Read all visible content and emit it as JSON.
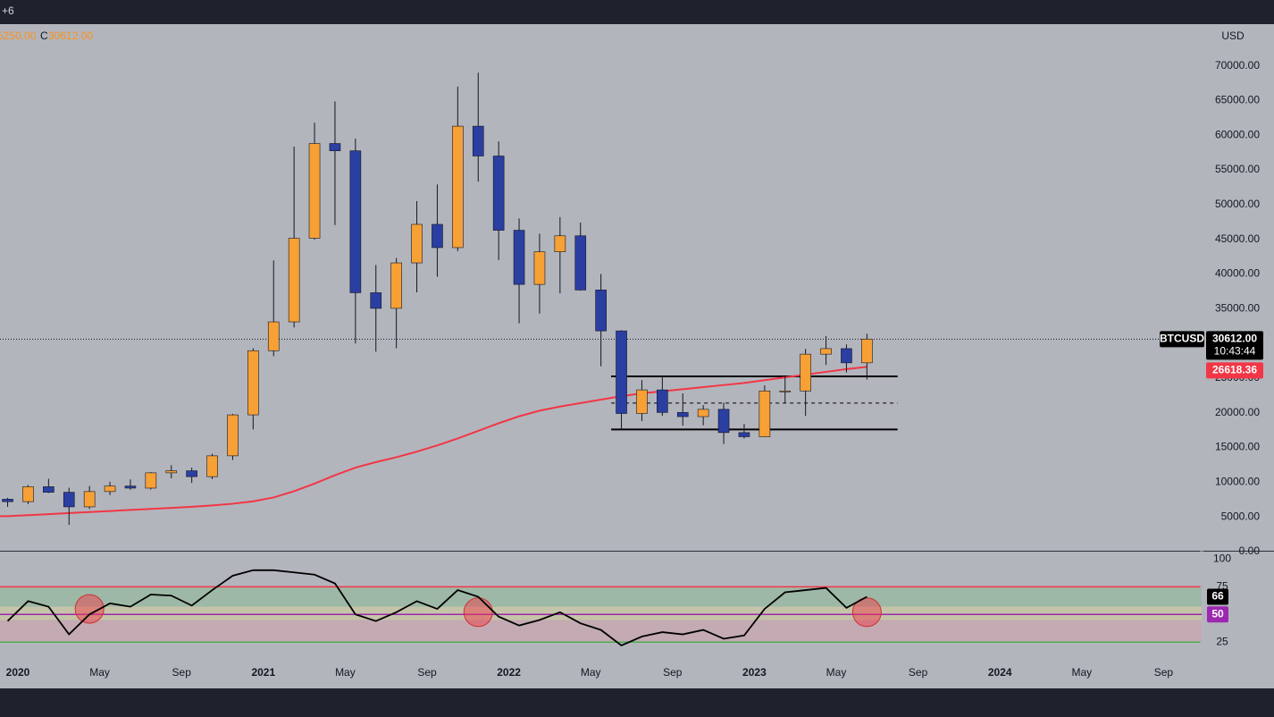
{
  "chart_data": {
    "type": "candlestick",
    "top_text": "+6",
    "legend": {
      "low_tail": "5250.00",
      "close_prefix": "C",
      "close": "30612.00"
    },
    "currency": "USD",
    "symbol": "BTCUSD",
    "countdown": "10:43:44",
    "x": [
      "2019-12",
      "2020-01",
      "2020-02",
      "2020-03",
      "2020-04",
      "2020-05",
      "2020-06",
      "2020-07",
      "2020-08",
      "2020-09",
      "2020-10",
      "2020-11",
      "2020-12",
      "2021-01",
      "2021-02",
      "2021-03",
      "2021-04",
      "2021-05",
      "2021-06",
      "2021-07",
      "2021-08",
      "2021-09",
      "2021-10",
      "2021-11",
      "2021-12",
      "2022-01",
      "2022-02",
      "2022-03",
      "2022-04",
      "2022-05",
      "2022-06",
      "2022-07",
      "2022-08",
      "2022-09",
      "2022-10",
      "2022-11",
      "2022-12",
      "2023-01",
      "2023-02",
      "2023-03",
      "2023-04",
      "2023-05",
      "2023-06"
    ],
    "open": [
      7550,
      7200,
      9350,
      8550,
      6450,
      8650,
      9450,
      9150,
      11350,
      11650,
      10800,
      13800,
      19700,
      28950,
      33100,
      45150,
      58800,
      57750,
      37300,
      35050,
      41600,
      47150,
      43800,
      61300,
      57000,
      46300,
      38500,
      43200,
      45500,
      37700,
      31800,
      19900,
      23300,
      20050,
      19450,
      20500,
      17150,
      16550,
      23150,
      23150,
      28450,
      29250,
      27200
    ],
    "high": [
      7750,
      9600,
      10500,
      9200,
      9450,
      10050,
      10400,
      11450,
      12450,
      12100,
      14100,
      19850,
      29300,
      41950,
      58350,
      61800,
      64850,
      59500,
      41300,
      42300,
      50500,
      52900,
      67000,
      69000,
      59100,
      48000,
      45800,
      48200,
      47400,
      40000,
      31900,
      24700,
      25200,
      22800,
      21100,
      21450,
      18400,
      23950,
      25250,
      29200,
      31050,
      29850,
      31400
    ],
    "low": [
      6450,
      6850,
      8450,
      3850,
      6150,
      8150,
      8900,
      8950,
      10550,
      9900,
      10450,
      13200,
      17600,
      28150,
      32300,
      44950,
      47050,
      30000,
      28800,
      29300,
      37350,
      39600,
      43300,
      53300,
      42000,
      32900,
      34300,
      37200,
      37600,
      26700,
      17600,
      18800,
      19550,
      18150,
      18200,
      15500,
      16300,
      16500,
      21400,
      19550,
      26900,
      25800,
      24800
    ],
    "close": [
      7200,
      9350,
      8550,
      6450,
      8650,
      9450,
      9150,
      11350,
      11650,
      10800,
      13800,
      19700,
      28950,
      33100,
      45150,
      58800,
      57750,
      37300,
      35050,
      41600,
      47150,
      43800,
      61300,
      57000,
      46300,
      38500,
      43200,
      45500,
      37700,
      31800,
      19900,
      23300,
      20050,
      19450,
      20500,
      17150,
      16550,
      23150,
      23150,
      28450,
      29250,
      27200,
      30612
    ],
    "up_color": "#f7a035",
    "down_color": "#2b3ea1",
    "ma": {
      "color": "#f23645",
      "values": [
        5100,
        5250,
        5400,
        5550,
        5700,
        5850,
        6000,
        6150,
        6300,
        6450,
        6650,
        6900,
        7250,
        7800,
        8700,
        9800,
        11000,
        12100,
        12900,
        13600,
        14400,
        15300,
        16300,
        17400,
        18500,
        19500,
        20300,
        20900,
        21400,
        21900,
        22400,
        22800,
        23100,
        23400,
        23700,
        24000,
        24300,
        24700,
        25100,
        25500,
        25900,
        26300,
        26618.36
      ]
    },
    "price_tag": {
      "value": 30612,
      "label": "30612.00"
    },
    "ylim": [
      0,
      76000
    ],
    "yticks": [
      {
        "value": 0,
        "label": "0.00"
      },
      {
        "value": 5000,
        "label": "5000.00"
      },
      {
        "value": 10000,
        "label": "10000.00"
      },
      {
        "value": 15000,
        "label": "15000.00"
      },
      {
        "value": 20000,
        "label": "20000.00"
      },
      {
        "value": 25000,
        "label": "25000.00"
      },
      {
        "value": 30000,
        "label": "30000.00"
      },
      {
        "value": 35000,
        "label": "35000.00"
      },
      {
        "value": 40000,
        "label": "40000.00"
      },
      {
        "value": 45000,
        "label": "45000.00"
      },
      {
        "value": 50000,
        "label": "50000.00"
      },
      {
        "value": 55000,
        "label": "55000.00"
      },
      {
        "value": 60000,
        "label": "60000.00"
      },
      {
        "value": 65000,
        "label": "65000.00"
      },
      {
        "value": 70000,
        "label": "70000.00"
      }
    ],
    "levels": [
      {
        "value": 25250,
        "from": "2022-06",
        "to": "2023-08",
        "style": "solid"
      },
      {
        "value": 21400,
        "from": "2022-06",
        "to": "2023-08",
        "style": "dashed"
      },
      {
        "value": 17600,
        "from": "2022-06",
        "to": "2023-08",
        "style": "solid"
      }
    ],
    "xticks": [
      {
        "value": "2020-01",
        "label": "2020"
      },
      {
        "value": "2020-05",
        "label": "May"
      },
      {
        "value": "2020-09",
        "label": "Sep"
      },
      {
        "value": "2021-01",
        "label": "2021"
      },
      {
        "value": "2021-05",
        "label": "May"
      },
      {
        "value": "2021-09",
        "label": "Sep"
      },
      {
        "value": "2022-01",
        "label": "2022"
      },
      {
        "value": "2022-05",
        "label": "May"
      },
      {
        "value": "2022-09",
        "label": "Sep"
      },
      {
        "value": "2023-01",
        "label": "2023"
      },
      {
        "value": "2023-05",
        "label": "May"
      },
      {
        "value": "2023-09",
        "label": "Sep"
      },
      {
        "value": "2024-01",
        "label": "2024"
      },
      {
        "value": "2024-05",
        "label": "May"
      },
      {
        "value": "2024-09",
        "label": "Sep"
      }
    ],
    "rsi": {
      "color": "#000000",
      "values": [
        44,
        62,
        57,
        32,
        50,
        60,
        57,
        68,
        67,
        58,
        72,
        85,
        90,
        90,
        88,
        86,
        78,
        50,
        44,
        52,
        62,
        55,
        72,
        66,
        48,
        40,
        45,
        52,
        42,
        36,
        22,
        30,
        34,
        32,
        36,
        28,
        31,
        55,
        70,
        72,
        74,
        56,
        66
      ],
      "ylim": [
        9,
        106
      ],
      "yticks": [
        25,
        75,
        100
      ],
      "upper": {
        "value": 75,
        "color": "#f23645"
      },
      "mid": {
        "value": 50,
        "color": "#9c27b0"
      },
      "lower": {
        "value": 25,
        "color": "#4caf50"
      },
      "bands": [
        {
          "from": 57,
          "to": 75,
          "color": "#9db8a6"
        },
        {
          "from": 45,
          "to": 57,
          "color": "#c6c4a8"
        },
        {
          "from": 25,
          "to": 45,
          "color": "#c4aab2"
        }
      ],
      "highlights": [
        {
          "x": "2020-04",
          "value": 55
        },
        {
          "x": "2021-11",
          "value": 52
        },
        {
          "x": "2023-06",
          "value": 52
        }
      ],
      "highlight_color": "#f2364577"
    }
  }
}
